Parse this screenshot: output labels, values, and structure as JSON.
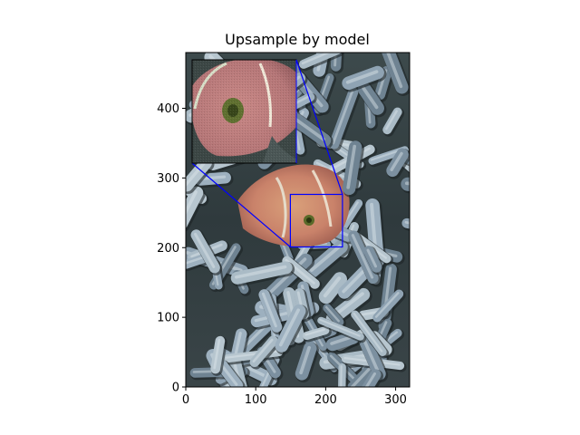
{
  "chart_data": {
    "type": "image",
    "title": "Upsample by model",
    "xlabel": "",
    "ylabel": "",
    "xlim": [
      0,
      320
    ],
    "ylim": [
      0,
      480
    ],
    "xticks": [
      0,
      100,
      200,
      300
    ],
    "yticks": [
      0,
      100,
      200,
      300,
      400
    ],
    "image_description_id": "clownfish-in-anemone",
    "zoom_region": {
      "x": [
        150,
        225
      ],
      "y": [
        200,
        275
      ],
      "color": "#0000ff"
    },
    "inset_extent": {
      "x": [
        10,
        160
      ],
      "y": [
        320,
        470
      ]
    }
  }
}
